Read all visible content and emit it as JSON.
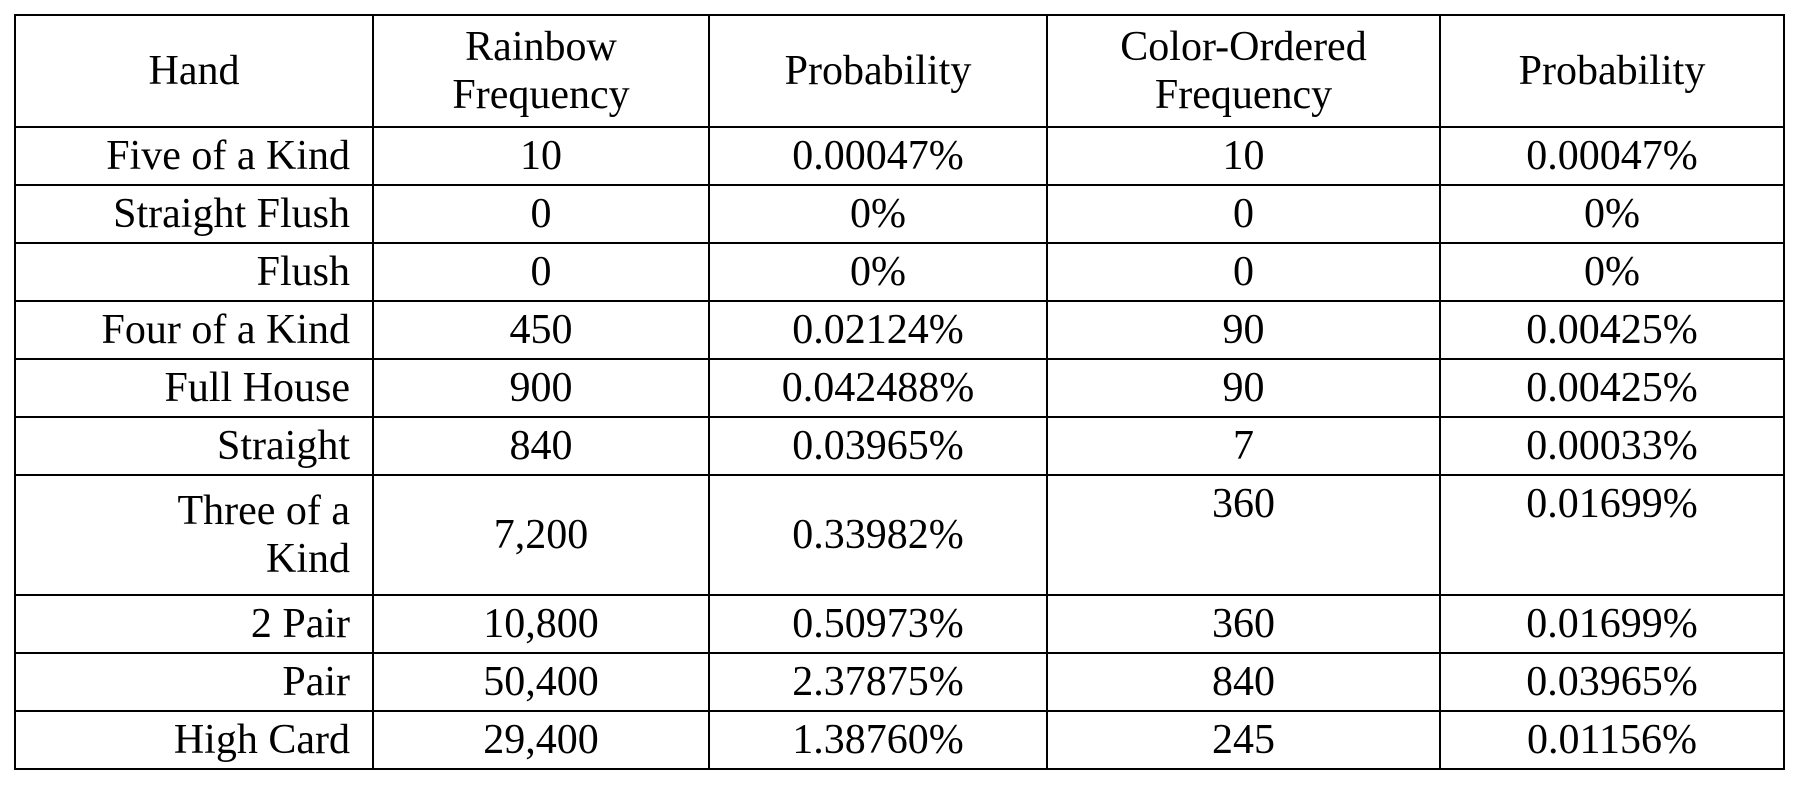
{
  "table": {
    "header": [
      "Hand",
      "Rainbow Frequency",
      "Probability",
      "Color-Ordered Frequency",
      "Probability"
    ],
    "rows": [
      [
        "Five of a Kind",
        "10",
        "0.00047%",
        "10",
        "0.00047%"
      ],
      [
        "Straight Flush",
        "0",
        "0%",
        "0",
        "0%"
      ],
      [
        "Flush",
        "0",
        "0%",
        "0",
        "0%"
      ],
      [
        "Four of a Kind",
        "450",
        "0.02124%",
        "90",
        "0.00425%"
      ],
      [
        "Full House",
        "900",
        "0.042488%",
        "90",
        "0.00425%"
      ],
      [
        "Straight",
        "840",
        "0.03965%",
        "7",
        "0.00033%"
      ],
      [
        "Three of a Kind",
        "7,200",
        "0.33982%",
        "360",
        "0.01699%"
      ],
      [
        "2 Pair",
        "10,800",
        "0.50973%",
        "360",
        "0.01699%"
      ],
      [
        "Pair",
        "50,400",
        "2.37875%",
        "840",
        "0.03965%"
      ],
      [
        "High Card",
        "29,400",
        "1.38760%",
        "245",
        "0.01156%"
      ]
    ]
  }
}
